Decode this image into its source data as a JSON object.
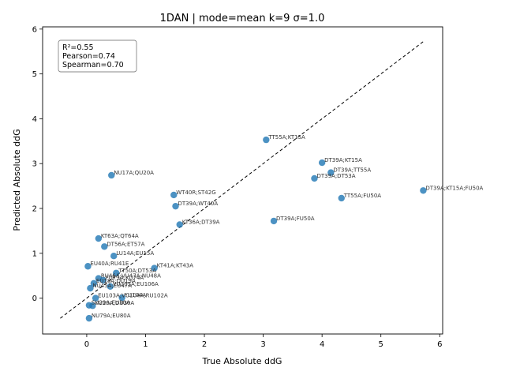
{
  "chart_data": {
    "type": "scatter",
    "title": "1DAN | mode=mean k=9 σ=1.0",
    "xlabel": "True Absolute ddG",
    "ylabel": "Predicted Absolute ddG",
    "xlim": [
      -0.75,
      6.05
    ],
    "ylim": [
      -0.8,
      6.05
    ],
    "xticks": [
      0,
      1,
      2,
      3,
      4,
      5,
      6
    ],
    "yticks": [
      0,
      1,
      2,
      3,
      4,
      5,
      6
    ],
    "grid": false,
    "point_color": "#1f77b4",
    "identity_line": {
      "from": -0.45,
      "to": 5.72,
      "style": "dashed"
    },
    "stats_box": {
      "position": "top-left",
      "lines": [
        "R²=0.55",
        "Pearson=0.74",
        "Spearman=0.70"
      ]
    },
    "points": [
      {
        "label": "TT55A;KT15A",
        "x": 3.05,
        "y": 3.53
      },
      {
        "label": "DT39A;KT15A",
        "x": 4.0,
        "y": 3.02
      },
      {
        "label": "DT39A;TT55A",
        "x": 4.15,
        "y": 2.8
      },
      {
        "label": "DT39A;DT53A",
        "x": 3.87,
        "y": 2.67
      },
      {
        "label": "DT39A;KT15A;FU50A",
        "x": 5.72,
        "y": 2.4
      },
      {
        "label": "TT55A;FU50A",
        "x": 4.33,
        "y": 2.23
      },
      {
        "label": "DT39A;FU50A",
        "x": 3.18,
        "y": 1.72
      },
      {
        "label": "NU17A;QU20A",
        "x": 0.42,
        "y": 2.74
      },
      {
        "label": "WT40R;ST42G",
        "x": 1.48,
        "y": 2.3
      },
      {
        "label": "DT39A;WT40A",
        "x": 1.51,
        "y": 2.05
      },
      {
        "label": "KT36A;DT39A",
        "x": 1.58,
        "y": 1.64
      },
      {
        "label": "KT63A;QT64A",
        "x": 0.2,
        "y": 1.33
      },
      {
        "label": "DT56A;ET57A",
        "x": 0.3,
        "y": 1.15
      },
      {
        "label": "LU14A;EU15A",
        "x": 0.46,
        "y": 0.94
      },
      {
        "label": "EU40A;RU41E",
        "x": 0.02,
        "y": 0.71
      },
      {
        "label": "KT41A;KT43A",
        "x": 1.15,
        "y": 0.67
      },
      {
        "label": "TT50A;DT53A",
        "x": 0.5,
        "y": 0.56
      },
      {
        "label": "RU46A;VU47A;NU48A",
        "x": 0.2,
        "y": 0.44
      },
      {
        "label": "FU73A;KU74A",
        "x": 0.28,
        "y": 0.4
      },
      {
        "label": "EU18A;QU19A",
        "x": 0.12,
        "y": 0.33
      },
      {
        "label": "VU105A;EU106A",
        "x": 0.4,
        "y": 0.26
      },
      {
        "label": "NU45A;EU47A",
        "x": 0.06,
        "y": 0.22
      },
      {
        "label": "EU103A;VU104A;RU102A",
        "x": 0.15,
        "y": 0.0
      },
      {
        "label": "YU104A",
        "x": 0.6,
        "y": 0.01
      },
      {
        "label": "SU29A;EU30A",
        "x": 0.04,
        "y": -0.16
      },
      {
        "label": "KU29A;DU30A",
        "x": 0.1,
        "y": -0.17
      },
      {
        "label": "NU79A;EU80A",
        "x": 0.04,
        "y": -0.45
      }
    ]
  }
}
